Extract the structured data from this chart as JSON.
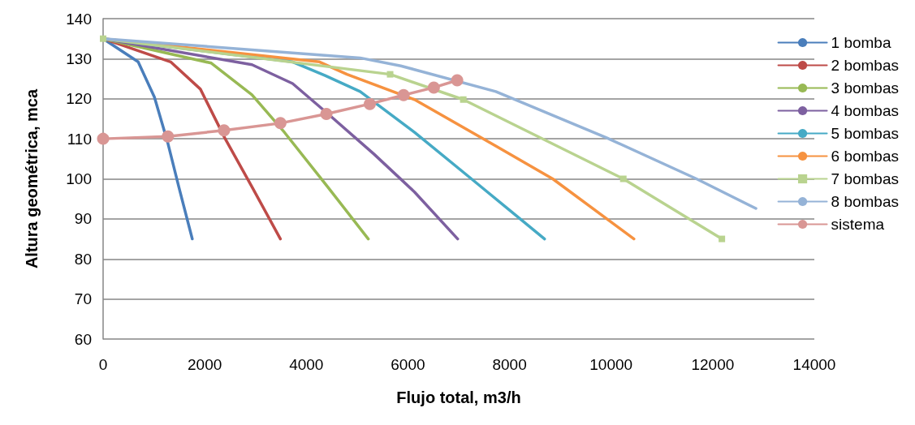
{
  "chart_data": {
    "type": "line",
    "xlabel": "Flujo total, m3/h",
    "ylabel": "Altura geométrica, mca",
    "xlim": [
      0,
      14000
    ],
    "xticks": [
      0,
      2000,
      4000,
      6000,
      8000,
      10000,
      12000,
      14000
    ],
    "ylim": [
      60,
      140
    ],
    "yticks": [
      60,
      70,
      80,
      90,
      100,
      110,
      120,
      130,
      140
    ],
    "grid": "y",
    "legend": "right",
    "marker": "none",
    "line_style": "solid",
    "series": [
      {
        "name": "1 bomba",
        "color": "#4a7ebb",
        "x": [
          0,
          690,
          1010,
          1275,
          1490,
          1755
        ],
        "values": [
          135,
          129.2,
          120.4,
          108.9,
          98,
          85
        ]
      },
      {
        "name": "2 bombas",
        "color": "#be4b48",
        "x": [
          0,
          1330,
          1915,
          2395,
          2930,
          3490
        ],
        "values": [
          135,
          129.2,
          122.4,
          110.2,
          98,
          85
        ]
      },
      {
        "name": "3 bombas",
        "color": "#98b954",
        "x": [
          0,
          2130,
          2930,
          3570,
          4420,
          5220
        ],
        "values": [
          135,
          128.9,
          121,
          111.6,
          98,
          85
        ]
      },
      {
        "name": "4 bombas",
        "color": "#7d60a0",
        "x": [
          0,
          2930,
          3730,
          4420,
          5330,
          6130,
          6980
        ],
        "values": [
          135,
          128.5,
          123.8,
          116.3,
          106.2,
          96.7,
          85
        ]
      },
      {
        "name": "5 bombas",
        "color": "#46aac5",
        "x": [
          0,
          3730,
          4370,
          5060,
          6130,
          7250,
          8690
        ],
        "values": [
          135,
          129.2,
          125.8,
          121.8,
          111.6,
          100,
          85
        ]
      },
      {
        "name": "6 bombas",
        "color": "#f69240",
        "x": [
          0,
          4260,
          4800,
          6130,
          7730,
          8850,
          10450
        ],
        "values": [
          135,
          129.2,
          126.1,
          119.8,
          108.2,
          100,
          85
        ]
      },
      {
        "name": "7 bombas",
        "color": "#b9d38f",
        "marker": "square",
        "x": [
          0,
          5650,
          7090,
          10240,
          12180
        ],
        "values": [
          135,
          126.1,
          119.8,
          100,
          85
        ]
      },
      {
        "name": "8 bombas",
        "color": "#95b3d7",
        "x": [
          0,
          5060,
          5860,
          7730,
          9920,
          11680,
          12850
        ],
        "values": [
          135,
          130.2,
          128.2,
          121.8,
          110.2,
          100,
          92.6
        ]
      },
      {
        "name": "sistema",
        "color": "#d99694",
        "marker": "circle",
        "x": [
          0,
          1275,
          2380,
          3490,
          4395,
          5250,
          5915,
          6510,
          6970
        ],
        "values": [
          110,
          110.6,
          112.1,
          113.9,
          116.2,
          118.7,
          120.9,
          122.8,
          124.6
        ]
      }
    ]
  }
}
